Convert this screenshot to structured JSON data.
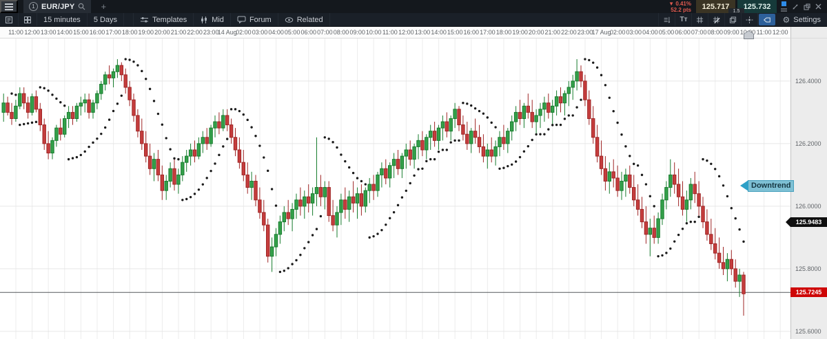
{
  "topbar": {
    "tab": {
      "index": "1",
      "symbol": "EUR/JPY"
    },
    "add_tab_label": "+",
    "change": {
      "direction": "▼",
      "percent": "0.41%",
      "pips": "52.2 pts"
    },
    "bid": "125.717",
    "ask": "125.732",
    "spread": "1.5"
  },
  "toolbar": {
    "interval_label": "15 minutes",
    "range_label": "5 Days",
    "templates_label": "Templates",
    "mid_label": "Mid",
    "forum_label": "Forum",
    "related_label": "Related",
    "settings_label": "Settings",
    "text_size_glyph": "Tт",
    "gear_glyph": "⚙",
    "close_glyph": "×"
  },
  "price_tags": {
    "sar": "125.9483",
    "last": "125.7245"
  },
  "chart_data": {
    "type": "candlestick",
    "symbol": "EUR/JPY",
    "interval": "15 minutes",
    "range_label": "5 Days",
    "indicator": "Parabolic SAR",
    "trend_annotation": {
      "text": "Downtrend",
      "price": 126.065
    },
    "price_line": 125.7245,
    "sar_tag_value": 125.9483,
    "last_tag_value": 125.7245,
    "ylim": [
      125.576,
      126.536
    ],
    "grid": true,
    "y_ticks": [
      "126.4000",
      "126.2000",
      "126.0000",
      "125.8000",
      "125.6000"
    ],
    "y_tick_values": [
      126.4,
      126.2,
      126.0,
      125.8,
      125.6
    ],
    "x_hour_labels": [
      "11:00",
      "12:00",
      "13:00",
      "14:00",
      "15:00",
      "16:00",
      "17:00",
      "18:00",
      "19:00",
      "20:00",
      "21:00",
      "22:00",
      "23:00",
      "14 Aug",
      "02:00",
      "03:00",
      "04:00",
      "05:00",
      "06:00",
      "07:00",
      "08:00",
      "09:00",
      "10:00",
      "11:00",
      "12:00",
      "13:00",
      "14:00",
      "15:00",
      "16:00",
      "17:00",
      "18:00",
      "19:00",
      "20:00",
      "21:00",
      "22:00",
      "23:00",
      "17 Aug",
      "02:00",
      "03:00",
      "04:00",
      "05:00",
      "06:00",
      "07:00",
      "08:00",
      "09:00",
      "10:00",
      "11:00",
      "12:00"
    ],
    "current_time_label_index": 45,
    "colors": {
      "up": "#34a04a",
      "up_border": "#177c2d",
      "down": "#c53d3d",
      "down_border": "#9f2525",
      "sar_dot": "#1b1b1b",
      "last_tag": "#ce0606",
      "sar_tag": "#0f0f0f",
      "annotation_fill": "#7ec0d4"
    },
    "candles_format": "ohlc",
    "candles": [
      [
        126.3,
        126.36,
        126.27,
        126.33
      ],
      [
        126.33,
        126.35,
        126.29,
        126.3
      ],
      [
        126.3,
        126.33,
        126.26,
        126.28
      ],
      [
        126.28,
        126.34,
        126.27,
        126.32
      ],
      [
        126.32,
        126.38,
        126.31,
        126.36
      ],
      [
        126.36,
        126.38,
        126.31,
        126.33
      ],
      [
        126.33,
        126.35,
        126.28,
        126.3
      ],
      [
        126.3,
        126.36,
        126.29,
        126.35
      ],
      [
        126.35,
        126.37,
        126.3,
        126.31
      ],
      [
        126.31,
        126.33,
        126.24,
        126.26
      ],
      [
        126.26,
        126.28,
        126.18,
        126.2
      ],
      [
        126.2,
        126.24,
        126.15,
        126.17
      ],
      [
        126.17,
        126.22,
        126.15,
        126.21
      ],
      [
        126.21,
        126.26,
        126.19,
        126.25
      ],
      [
        126.25,
        126.28,
        126.21,
        126.23
      ],
      [
        126.23,
        126.29,
        126.22,
        126.28
      ],
      [
        126.28,
        126.32,
        126.25,
        126.3
      ],
      [
        126.3,
        126.32,
        126.26,
        126.28
      ],
      [
        126.28,
        126.33,
        126.27,
        126.32
      ],
      [
        126.32,
        126.35,
        126.29,
        126.33
      ],
      [
        126.33,
        126.36,
        126.3,
        126.34
      ],
      [
        126.34,
        126.36,
        126.28,
        126.3
      ],
      [
        126.3,
        126.34,
        126.28,
        126.33
      ],
      [
        126.33,
        126.37,
        126.31,
        126.36
      ],
      [
        126.36,
        126.4,
        126.34,
        126.39
      ],
      [
        126.39,
        126.43,
        126.37,
        126.42
      ],
      [
        126.42,
        126.45,
        126.39,
        126.41
      ],
      [
        126.41,
        126.44,
        126.38,
        126.43
      ],
      [
        126.43,
        126.47,
        126.41,
        126.45
      ],
      [
        126.45,
        126.46,
        126.4,
        126.42
      ],
      [
        126.42,
        126.44,
        126.36,
        126.38
      ],
      [
        126.38,
        126.4,
        126.32,
        126.34
      ],
      [
        126.34,
        126.36,
        126.27,
        126.29
      ],
      [
        126.29,
        126.31,
        126.22,
        126.24
      ],
      [
        126.24,
        126.28,
        126.18,
        126.2
      ],
      [
        126.2,
        126.24,
        126.14,
        126.16
      ],
      [
        126.16,
        126.2,
        126.1,
        126.12
      ],
      [
        126.12,
        126.17,
        126.08,
        126.15
      ],
      [
        126.15,
        126.18,
        126.08,
        126.1
      ],
      [
        126.1,
        126.13,
        126.02,
        126.05
      ],
      [
        126.05,
        126.1,
        126.02,
        126.08
      ],
      [
        126.08,
        126.14,
        126.06,
        126.12
      ],
      [
        126.12,
        126.15,
        126.05,
        126.07
      ],
      [
        126.07,
        126.12,
        126.04,
        126.1
      ],
      [
        126.1,
        126.16,
        126.08,
        126.14
      ],
      [
        126.14,
        126.18,
        126.11,
        126.16
      ],
      [
        126.16,
        126.2,
        126.13,
        126.18
      ],
      [
        126.18,
        126.21,
        126.14,
        126.16
      ],
      [
        126.16,
        126.22,
        126.15,
        126.2
      ],
      [
        126.2,
        126.24,
        126.17,
        126.22
      ],
      [
        126.22,
        126.25,
        126.18,
        126.2
      ],
      [
        126.2,
        126.26,
        126.19,
        126.25
      ],
      [
        126.25,
        126.29,
        126.22,
        126.27
      ],
      [
        126.27,
        126.3,
        126.23,
        126.25
      ],
      [
        126.25,
        126.31,
        126.24,
        126.29
      ],
      [
        126.29,
        126.31,
        126.24,
        126.26
      ],
      [
        126.26,
        126.28,
        126.2,
        126.22
      ],
      [
        126.22,
        126.25,
        126.16,
        126.18
      ],
      [
        126.18,
        126.22,
        126.12,
        126.14
      ],
      [
        126.14,
        126.18,
        126.08,
        126.1
      ],
      [
        126.1,
        126.14,
        126.04,
        126.06
      ],
      [
        126.06,
        126.11,
        126.02,
        126.08
      ],
      [
        126.08,
        126.1,
        126.0,
        126.02
      ],
      [
        126.02,
        126.06,
        125.96,
        125.98
      ],
      [
        125.98,
        126.02,
        125.92,
        125.94
      ],
      [
        125.94,
        125.96,
        125.82,
        125.84
      ],
      [
        125.84,
        125.9,
        125.79,
        125.87
      ],
      [
        125.87,
        125.93,
        125.84,
        125.91
      ],
      [
        125.91,
        125.97,
        125.88,
        125.95
      ],
      [
        125.95,
        126.0,
        125.92,
        125.98
      ],
      [
        125.98,
        126.02,
        125.94,
        125.96
      ],
      [
        125.96,
        126.01,
        125.92,
        125.99
      ],
      [
        125.99,
        126.04,
        125.96,
        126.02
      ],
      [
        126.02,
        126.06,
        125.97,
        126.0
      ],
      [
        126.0,
        126.05,
        125.96,
        126.03
      ],
      [
        126.03,
        126.07,
        125.98,
        126.01
      ],
      [
        126.01,
        126.06,
        125.97,
        126.04
      ],
      [
        126.04,
        126.22,
        126.0,
        126.06
      ],
      [
        126.06,
        126.1,
        126.0,
        126.03
      ],
      [
        126.03,
        126.08,
        125.99,
        126.06
      ],
      [
        126.06,
        126.08,
        125.95,
        125.97
      ],
      [
        125.97,
        126.02,
        125.92,
        125.94
      ],
      [
        125.94,
        126.0,
        125.9,
        125.98
      ],
      [
        125.98,
        126.04,
        125.94,
        126.02
      ],
      [
        126.02,
        126.06,
        125.96,
        125.99
      ],
      [
        125.99,
        126.05,
        125.95,
        126.03
      ],
      [
        126.03,
        126.08,
        125.98,
        126.01
      ],
      [
        126.01,
        126.06,
        125.96,
        126.04
      ],
      [
        126.04,
        126.07,
        125.97,
        126.0
      ],
      [
        126.0,
        126.06,
        125.98,
        126.05
      ],
      [
        126.05,
        126.09,
        126.01,
        126.07
      ],
      [
        126.07,
        126.1,
        126.02,
        126.05
      ],
      [
        126.05,
        126.11,
        126.03,
        126.1
      ],
      [
        126.1,
        126.14,
        126.06,
        126.12
      ],
      [
        126.12,
        126.15,
        126.07,
        126.09
      ],
      [
        126.09,
        126.14,
        126.06,
        126.13
      ],
      [
        126.13,
        126.17,
        126.09,
        126.15
      ],
      [
        126.15,
        126.18,
        126.1,
        126.12
      ],
      [
        126.12,
        126.17,
        126.09,
        126.16
      ],
      [
        126.16,
        126.2,
        126.12,
        126.18
      ],
      [
        126.18,
        126.21,
        126.13,
        126.15
      ],
      [
        126.15,
        126.2,
        126.12,
        126.19
      ],
      [
        126.19,
        126.23,
        126.15,
        126.21
      ],
      [
        126.21,
        126.24,
        126.16,
        126.18
      ],
      [
        126.18,
        126.23,
        126.15,
        126.22
      ],
      [
        126.22,
        126.26,
        126.18,
        126.24
      ],
      [
        126.24,
        126.27,
        126.19,
        126.21
      ],
      [
        126.21,
        126.26,
        126.18,
        126.25
      ],
      [
        126.25,
        126.29,
        126.21,
        126.27
      ],
      [
        126.27,
        126.3,
        126.22,
        126.24
      ],
      [
        126.24,
        126.29,
        126.21,
        126.28
      ],
      [
        126.28,
        126.33,
        126.25,
        126.31
      ],
      [
        126.31,
        126.32,
        126.24,
        126.26
      ],
      [
        126.26,
        126.29,
        126.21,
        126.23
      ],
      [
        126.23,
        126.27,
        126.18,
        126.2
      ],
      [
        126.2,
        126.25,
        126.17,
        126.24
      ],
      [
        126.24,
        126.28,
        126.2,
        126.22
      ],
      [
        126.22,
        126.26,
        126.17,
        126.19
      ],
      [
        126.19,
        126.23,
        126.14,
        126.16
      ],
      [
        126.16,
        126.2,
        126.12,
        126.18
      ],
      [
        126.18,
        126.22,
        126.14,
        126.16
      ],
      [
        126.16,
        126.21,
        126.13,
        126.19
      ],
      [
        126.19,
        126.24,
        126.16,
        126.22
      ],
      [
        126.22,
        126.26,
        126.18,
        126.2
      ],
      [
        126.2,
        126.25,
        126.17,
        126.24
      ],
      [
        126.24,
        126.29,
        126.21,
        126.27
      ],
      [
        126.27,
        126.32,
        126.24,
        126.3
      ],
      [
        126.3,
        126.34,
        126.26,
        126.28
      ],
      [
        126.28,
        126.33,
        126.25,
        126.32
      ],
      [
        126.32,
        126.36,
        126.28,
        126.3
      ],
      [
        126.3,
        126.34,
        126.25,
        126.27
      ],
      [
        126.27,
        126.31,
        126.23,
        126.29
      ],
      [
        126.29,
        126.33,
        126.25,
        126.31
      ],
      [
        126.31,
        126.35,
        126.27,
        126.33
      ],
      [
        126.33,
        126.36,
        126.28,
        126.3
      ],
      [
        126.3,
        126.34,
        126.26,
        126.32
      ],
      [
        126.32,
        126.37,
        126.29,
        126.35
      ],
      [
        126.35,
        126.38,
        126.3,
        126.33
      ],
      [
        126.33,
        126.37,
        126.29,
        126.36
      ],
      [
        126.36,
        126.4,
        126.32,
        126.38
      ],
      [
        126.38,
        126.42,
        126.34,
        126.4
      ],
      [
        126.4,
        126.47,
        126.37,
        126.43
      ],
      [
        126.43,
        126.45,
        126.38,
        126.4
      ],
      [
        126.4,
        126.42,
        126.32,
        126.34
      ],
      [
        126.34,
        126.37,
        126.26,
        126.28
      ],
      [
        126.28,
        126.32,
        126.2,
        126.22
      ],
      [
        126.22,
        126.26,
        126.14,
        126.16
      ],
      [
        126.16,
        126.21,
        126.1,
        126.12
      ],
      [
        126.12,
        126.16,
        126.05,
        126.08
      ],
      [
        126.08,
        126.14,
        126.04,
        126.11
      ],
      [
        126.11,
        126.15,
        126.06,
        126.09
      ],
      [
        126.09,
        126.13,
        126.03,
        126.05
      ],
      [
        126.05,
        126.11,
        126.02,
        126.08
      ],
      [
        126.08,
        126.12,
        126.03,
        126.1
      ],
      [
        126.1,
        126.13,
        126.04,
        126.06
      ],
      [
        126.06,
        126.1,
        126.0,
        126.02
      ],
      [
        126.02,
        126.07,
        125.97,
        125.99
      ],
      [
        125.99,
        126.03,
        125.93,
        125.95
      ],
      [
        125.95,
        126.0,
        125.88,
        125.91
      ],
      [
        125.91,
        125.96,
        125.84,
        125.93
      ],
      [
        125.93,
        125.97,
        125.88,
        125.9
      ],
      [
        125.9,
        125.98,
        125.88,
        125.96
      ],
      [
        125.96,
        126.04,
        125.94,
        126.02
      ],
      [
        126.02,
        126.08,
        125.99,
        126.06
      ],
      [
        126.06,
        126.15,
        126.03,
        126.1
      ],
      [
        126.1,
        126.14,
        126.04,
        126.07
      ],
      [
        126.07,
        126.12,
        126.0,
        126.03
      ],
      [
        126.03,
        126.08,
        125.97,
        125.99
      ],
      [
        125.99,
        126.05,
        125.95,
        126.02
      ],
      [
        126.02,
        126.09,
        125.99,
        126.07
      ],
      [
        126.07,
        126.11,
        126.01,
        126.04
      ],
      [
        126.04,
        126.08,
        125.97,
        126.0
      ],
      [
        126.0,
        126.03,
        125.93,
        125.95
      ],
      [
        125.95,
        125.99,
        125.89,
        125.91
      ],
      [
        125.91,
        125.96,
        125.86,
        125.88
      ],
      [
        125.88,
        125.93,
        125.83,
        125.85
      ],
      [
        125.85,
        125.9,
        125.8,
        125.82
      ],
      [
        125.82,
        125.87,
        125.78,
        125.8
      ],
      [
        125.8,
        125.85,
        125.76,
        125.83
      ],
      [
        125.83,
        125.86,
        125.78,
        125.8
      ],
      [
        125.8,
        125.83,
        125.74,
        125.76
      ],
      [
        125.76,
        125.8,
        125.71,
        125.78
      ],
      [
        125.78,
        125.79,
        125.65,
        125.72
      ]
    ]
  }
}
